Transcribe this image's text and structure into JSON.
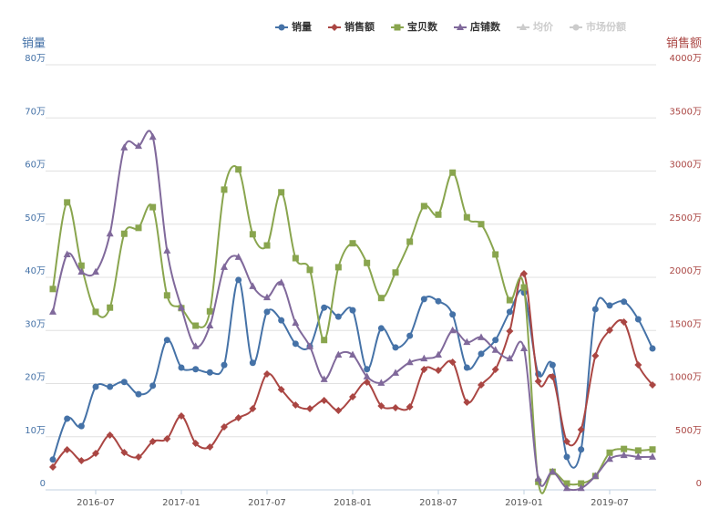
{
  "chart_data": {
    "type": "line",
    "yaxis_title": "销量",
    "y2axis_title": "销售额",
    "categories": [
      null,
      null,
      null,
      "2016-07",
      null,
      null,
      null,
      null,
      null,
      "2017-01",
      null,
      null,
      null,
      null,
      null,
      "2017-07",
      null,
      null,
      null,
      null,
      null,
      "2018-01",
      null,
      null,
      null,
      null,
      null,
      "2018-07",
      null,
      null,
      null,
      null,
      null,
      "2019-01",
      null,
      null,
      null,
      null,
      null,
      "2019-07",
      null,
      null,
      null
    ],
    "ylim": [
      0,
      80
    ],
    "yticks": [
      0,
      {
        "value": 10,
        "label": "10万"
      },
      {
        "value": 20,
        "label": "20万"
      },
      {
        "value": 30,
        "label": "30万"
      },
      {
        "value": 40,
        "label": "40万"
      },
      {
        "value": 50,
        "label": "50万"
      },
      {
        "value": 60,
        "label": "60万"
      },
      {
        "value": 70,
        "label": "70万"
      },
      {
        "value": 80,
        "label": "80万"
      }
    ],
    "y2lim": [
      0,
      4000
    ],
    "y2ticks": [
      0,
      {
        "value": 500,
        "label": "500万"
      },
      {
        "value": 1000,
        "label": "1000万"
      },
      {
        "value": 1500,
        "label": "1500万"
      },
      {
        "value": 2000,
        "label": "2000万"
      },
      {
        "value": 2500,
        "label": "2500万"
      },
      {
        "value": 3000,
        "label": "3000万"
      },
      {
        "value": 3500,
        "label": "3500万"
      },
      {
        "value": 4000,
        "label": "4000万"
      }
    ],
    "grid": true,
    "series": [
      {
        "name": "销量",
        "color": "#4572a7",
        "marker": "circle",
        "values": [
          5.7,
          13.4,
          12.0,
          19.4,
          19.4,
          20.3,
          18.0,
          19.6,
          28.2,
          23.0,
          22.7,
          22.1,
          23.5,
          39.5,
          23.9,
          33.5,
          31.9,
          27.5,
          27.0,
          34.3,
          32.6,
          33.8,
          22.7,
          30.4,
          26.8,
          29.0,
          35.9,
          35.5,
          33.0,
          23.0,
          25.6,
          28.2,
          33.5,
          37.1,
          21.8,
          23.5,
          6.2,
          7.6,
          34.0,
          34.7,
          35.4,
          32.1,
          26.6
        ]
      },
      {
        "name": "销售额",
        "color": "#aa4643",
        "marker": "diamond",
        "axis": "y2",
        "values": [
          215,
          378,
          275,
          343,
          515,
          352,
          309,
          455,
          481,
          695,
          438,
          403,
          592,
          678,
          764,
          1090,
          944,
          798,
          764,
          841,
          747,
          876,
          1013,
          790,
          773,
          781,
          1133,
          1125,
          1202,
          824,
          987,
          1133,
          1494,
          2034,
          1021,
          1064,
          455,
          567,
          1262,
          1502,
          1579,
          1176,
          987
        ]
      },
      {
        "name": "宝贝数",
        "color": "#89a54e",
        "marker": "square",
        "values": [
          37.8,
          54.1,
          42.2,
          33.5,
          34.3,
          48.2,
          49.3,
          53.2,
          36.6,
          34.2,
          30.9,
          33.6,
          56.5,
          60.3,
          48.1,
          46.0,
          56.0,
          43.6,
          41.4,
          28.2,
          41.9,
          46.4,
          42.7,
          36.1,
          40.9,
          46.7,
          53.4,
          51.8,
          59.7,
          51.3,
          50.0,
          44.3,
          35.7,
          38.1,
          1.5,
          3.4,
          1.2,
          1.2,
          2.6,
          7.0,
          7.7,
          7.4,
          7.6
        ]
      },
      {
        "name": "店铺数",
        "color": "#80699b",
        "marker": "triangle",
        "values": [
          33.5,
          44.3,
          41.0,
          41.0,
          48.2,
          64.4,
          64.7,
          66.4,
          45.0,
          34.3,
          27.0,
          30.9,
          41.9,
          43.8,
          38.3,
          36.2,
          39.0,
          31.4,
          27.0,
          20.8,
          25.4,
          25.4,
          21.3,
          20.1,
          22.0,
          24.0,
          24.7,
          25.4,
          30.0,
          27.8,
          28.7,
          26.3,
          24.7,
          26.6,
          2.1,
          3.4,
          0.3,
          0.3,
          2.6,
          5.8,
          6.5,
          6.2,
          6.2
        ]
      }
    ],
    "legend_inactive": [
      "均价",
      "市场份额"
    ]
  }
}
